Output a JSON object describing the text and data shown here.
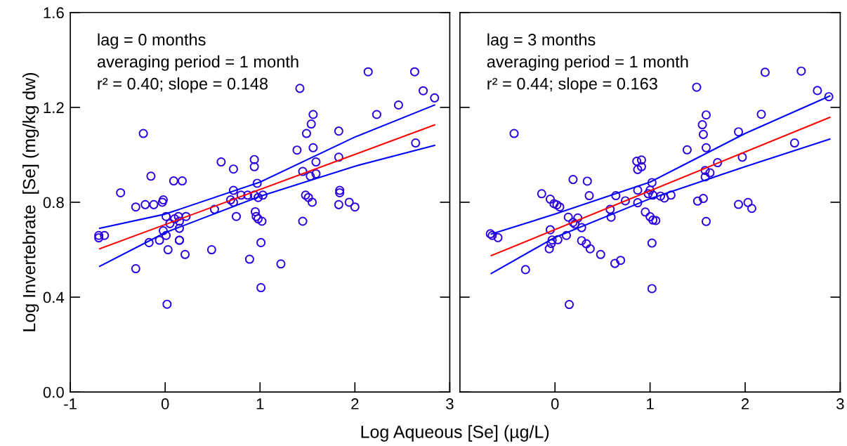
{
  "chart_data": [
    {
      "type": "scatter",
      "ylabel": "Log Invertebrate  [Se] (mg/kg dw)",
      "xlabel": "Log Aqueous [Se] (µg/L)",
      "annotations": [
        "lag = 0 months",
        "averaging period = 1 month",
        "r² = 0.40; slope = 0.148"
      ],
      "xlim": [
        -1,
        3
      ],
      "xticks": [
        -1,
        0,
        1,
        2,
        3
      ],
      "ylim": [
        0,
        1.6
      ],
      "yticks": [
        {
          "value": 0,
          "label": "0.0"
        },
        0.4,
        0.8,
        1.2,
        1.6
      ],
      "grid": false,
      "legend": false,
      "series": [
        {
          "type": "scatter",
          "marker": "circle",
          "color": "#2b00e0",
          "x": [
            -0.7,
            -0.7,
            -0.64,
            -0.47,
            -0.31,
            -0.31,
            -0.23,
            -0.21,
            -0.15,
            -0.17,
            -0.12,
            -0.06,
            -0.03,
            -0.02,
            -0.02,
            0.01,
            0.02,
            0.03,
            0.01,
            0.05,
            0.09,
            0.1,
            0.14,
            0.15,
            0.15,
            0.15,
            0.15,
            0.18,
            0.21,
            0.22,
            0.49,
            0.52,
            0.59,
            0.72,
            0.72,
            0.69,
            0.72,
            0.75,
            0.8,
            0.87,
            0.89,
            0.94,
            0.94,
            0.94,
            0.95,
            0.96,
            0.98,
            0.97,
            0.98,
            1.01,
            1.01,
            1.02,
            1.03,
            1.22,
            1.42,
            1.56,
            1.54,
            1.49,
            1.39,
            1.56,
            1.59,
            1.45,
            1.59,
            1.53,
            1.48,
            1.51,
            1.55,
            1.45,
            1.83,
            1.83,
            1.84,
            1.84,
            1.83,
            1.94,
            2.0,
            2.14,
            2.23,
            2.46,
            2.63,
            2.64,
            2.72,
            2.84
          ],
          "values": [
            0.66,
            0.65,
            0.66,
            0.84,
            0.52,
            0.78,
            1.09,
            0.79,
            0.91,
            0.63,
            0.79,
            0.64,
            0.8,
            0.81,
            0.68,
            0.74,
            0.37,
            0.6,
            0.66,
            0.71,
            0.89,
            0.73,
            0.74,
            0.72,
            0.69,
            0.64,
            0.64,
            0.89,
            0.58,
            0.74,
            0.6,
            0.77,
            0.97,
            0.94,
            0.85,
            0.81,
            0.8,
            0.74,
            0.83,
            0.83,
            0.56,
            0.83,
            0.98,
            0.95,
            0.76,
            0.74,
            0.82,
            0.88,
            0.73,
            0.63,
            0.44,
            0.72,
            0.83,
            0.54,
            1.28,
            1.17,
            1.13,
            1.09,
            1.02,
            1.03,
            0.97,
            0.93,
            0.92,
            0.91,
            0.83,
            0.82,
            0.8,
            0.72,
            1.1,
            0.99,
            0.85,
            0.84,
            0.79,
            0.8,
            0.78,
            1.35,
            1.17,
            1.21,
            1.35,
            1.05,
            1.27,
            1.24
          ]
        },
        {
          "type": "line",
          "marker": "none",
          "line_style": "solid",
          "color": "#ff0000",
          "x": [
            -0.69,
            2.84
          ],
          "values": [
            0.604,
            1.126
          ]
        },
        {
          "type": "line",
          "marker": "none",
          "line_style": "solid",
          "color": "#0000ff",
          "x": [
            -0.69,
            0,
            1,
            2,
            2.84
          ],
          "values": [
            0.69,
            0.75,
            0.885,
            1.075,
            1.21
          ]
        },
        {
          "type": "line",
          "marker": "none",
          "line_style": "solid",
          "color": "#0000ff",
          "x": [
            -0.69,
            0,
            1,
            2,
            2.84
          ],
          "values": [
            0.53,
            0.672,
            0.825,
            0.952,
            1.04
          ]
        }
      ]
    },
    {
      "type": "scatter",
      "annotations": [
        "lag = 3 months",
        "averaging period = 1 month",
        "r² = 0.44; slope = 0.163"
      ],
      "xlim": [
        -1,
        3
      ],
      "xticks": [
        0,
        1,
        2,
        3
      ],
      "ylim": [
        0,
        1.6
      ],
      "yticks": [
        0,
        0.4,
        0.8,
        1.2,
        1.6
      ],
      "tick_labels": "x",
      "grid": false,
      "legend": false,
      "series": [
        {
          "type": "scatter",
          "marker": "circle",
          "color": "#2b00e0",
          "x": [
            -0.43,
            -0.68,
            -0.66,
            -0.6,
            -0.31,
            -0.14,
            -0.05,
            -0.01,
            0.02,
            0.05,
            -0.05,
            -0.03,
            -0.04,
            0.03,
            -0.06,
            0.15,
            0.12,
            0.14,
            0.19,
            0.34,
            0.36,
            0.24,
            0.19,
            0.21,
            0.28,
            0.28,
            0.33,
            0.37,
            0.48,
            0.63,
            0.69,
            0.58,
            0.59,
            0.64,
            0.74,
            0.86,
            0.91,
            0.91,
            0.87,
            0.87,
            0.87,
            0.95,
            1.0,
            1.02,
            1.02,
            1.02,
            0.98,
            1.0,
            1.03,
            1.06,
            1.03,
            1.11,
            1.15,
            1.22,
            1.49,
            1.59,
            1.55,
            1.56,
            1.39,
            1.59,
            1.71,
            1.58,
            1.63,
            1.58,
            1.5,
            1.56,
            1.59,
            1.93,
            1.97,
            1.93,
            2.03,
            2.07,
            2.21,
            2.17,
            2.52,
            2.59,
            2.76,
            2.88
          ],
          "values": [
            1.09,
            0.667,
            0.66,
            0.651,
            0.516,
            0.836,
            0.813,
            0.794,
            0.789,
            0.78,
            0.684,
            0.641,
            0.626,
            0.642,
            0.604,
            0.369,
            0.66,
            0.737,
            0.896,
            0.889,
            0.828,
            0.734,
            0.715,
            0.708,
            0.693,
            0.638,
            0.625,
            0.604,
            0.58,
            0.542,
            0.555,
            0.77,
            0.737,
            0.828,
            0.806,
            0.973,
            0.978,
            0.95,
            0.938,
            0.851,
            0.798,
            0.759,
            0.739,
            0.628,
            0.436,
            0.883,
            0.836,
            0.851,
            0.725,
            0.723,
            0.83,
            0.826,
            0.818,
            0.83,
            1.285,
            1.168,
            1.127,
            1.086,
            1.021,
            1.03,
            0.967,
            0.934,
            0.924,
            0.907,
            0.805,
            0.816,
            0.719,
            1.097,
            0.99,
            0.791,
            0.799,
            0.774,
            1.348,
            1.171,
            1.05,
            1.353,
            1.271,
            1.245
          ]
        },
        {
          "type": "line",
          "marker": "none",
          "line_style": "solid",
          "color": "#ff0000",
          "x": [
            -0.67,
            2.89
          ],
          "values": [
            0.575,
            1.158
          ]
        },
        {
          "type": "line",
          "marker": "none",
          "line_style": "solid",
          "color": "#0000ff",
          "x": [
            -0.67,
            0,
            1,
            2,
            2.89
          ],
          "values": [
            0.666,
            0.75,
            0.885,
            1.09,
            1.248
          ]
        },
        {
          "type": "line",
          "marker": "none",
          "line_style": "solid",
          "color": "#0000ff",
          "x": [
            -0.67,
            0,
            1,
            2,
            2.89
          ],
          "values": [
            0.5,
            0.652,
            0.815,
            0.95,
            1.066
          ]
        }
      ]
    }
  ]
}
